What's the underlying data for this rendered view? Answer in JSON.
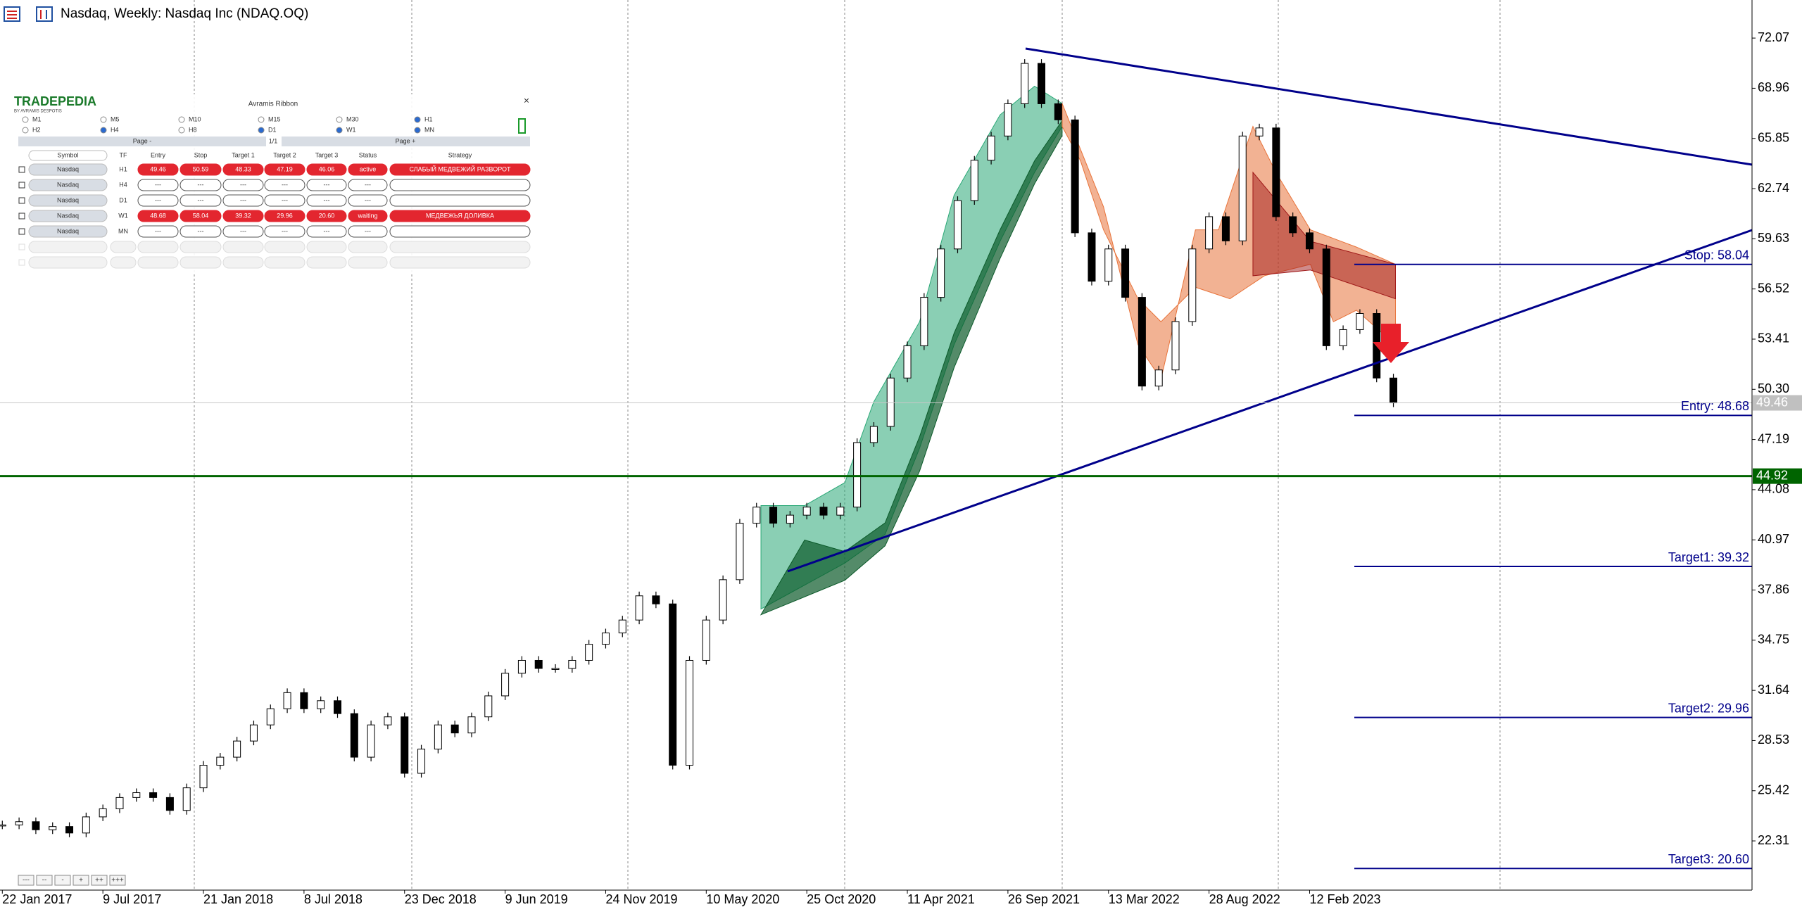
{
  "chart_data": {
    "type": "candlestick",
    "title": "Nasdaq, Weekly:  Nasdaq Inc (NDAQ.OQ)",
    "categories": [
      "22 Jan 2017",
      null,
      null,
      null,
      null,
      null,
      "9 Jul 2017",
      null,
      null,
      null,
      null,
      null,
      "21 Jan 2018",
      null,
      null,
      null,
      null,
      null,
      "8 Jul 2018",
      null,
      null,
      null,
      null,
      null,
      "23 Dec 2018",
      null,
      null,
      null,
      null,
      null,
      "9 Jun 2019",
      null,
      null,
      null,
      null,
      null,
      "24 Nov 2019",
      null,
      null,
      null,
      null,
      null,
      "10 May 2020",
      null,
      null,
      null,
      null,
      null,
      "25 Oct 2020",
      null,
      null,
      null,
      null,
      null,
      "11 Apr 2021",
      null,
      null,
      null,
      null,
      null,
      "26 Sep 2021",
      null,
      null,
      null,
      null,
      null,
      "13 Mar 2022",
      null,
      null,
      null,
      null,
      null,
      "28 Aug 2022",
      null,
      null,
      null,
      null,
      null,
      "12 Feb 2023",
      null,
      null,
      null,
      null,
      null
    ],
    "values": [
      23.3,
      23.5,
      23.0,
      23.2,
      22.8,
      23.8,
      24.3,
      25.0,
      25.3,
      25.0,
      24.2,
      25.6,
      27.0,
      27.5,
      28.5,
      29.5,
      30.5,
      31.5,
      30.5,
      31.0,
      30.2,
      27.5,
      29.5,
      30.0,
      26.5,
      28.0,
      29.5,
      29.0,
      30.0,
      31.3,
      32.7,
      33.5,
      33.0,
      33.0,
      33.5,
      34.5,
      35.2,
      36.0,
      37.5,
      37.0,
      27.0,
      33.5,
      36.0,
      38.5,
      42.0,
      43.0,
      42.0,
      42.5,
      43.0,
      42.5,
      43.0,
      47.0,
      48.0,
      51.0,
      53.0,
      56.0,
      59.0,
      62.0,
      64.5,
      66.0,
      68.0,
      70.5,
      68.0,
      67.0,
      60.0,
      57.0,
      59.0,
      56.0,
      50.5,
      51.5,
      54.5,
      59.0,
      61.0,
      59.5,
      66.0,
      66.5,
      61.0,
      60.0,
      59.0,
      53.0,
      54.0,
      55.0,
      51.0,
      49.46
    ],
    "color_up": "#ffffff",
    "color_down": "#000000",
    "ylim": [
      19.26,
      74.43
    ],
    "yticks": [
      72.07,
      68.96,
      65.85,
      62.74,
      59.63,
      56.52,
      53.41,
      {
        "value": 50.3,
        "label": "50.30"
      },
      47.19,
      44.08,
      40.97,
      37.86,
      34.75,
      31.64,
      28.53,
      25.42,
      22.31
    ],
    "grid": true,
    "levels": [
      {
        "label": "Stop: 58.04",
        "value": 58.04
      },
      {
        "label": "Entry: 48.68",
        "value": 48.68
      },
      {
        "label": "Target1: 39.32",
        "value": 39.32
      },
      {
        "label": "Target2: 29.96",
        "value": 29.96
      },
      {
        "label": "Target3: 20.60",
        "value": 20.6
      }
    ],
    "level_color": "#00008b",
    "support": {
      "value": 44.92,
      "color": "#006400"
    },
    "last": 49.46
  },
  "panel": {
    "logo": "TRADEPEDIA",
    "logo_sub": "BY AVRAMIS DESPOTIS",
    "title": "Avramis Ribbon",
    "close": "×",
    "timeframes": [
      {
        "label": "M1",
        "checked": false
      },
      {
        "label": "M5",
        "checked": false
      },
      {
        "label": "M10",
        "checked": false
      },
      {
        "label": "M15",
        "checked": false
      },
      {
        "label": "M30",
        "checked": false
      },
      {
        "label": "H1",
        "checked": true
      },
      {
        "label": "H2",
        "checked": false
      },
      {
        "label": "H4",
        "checked": true
      },
      {
        "label": "H8",
        "checked": false
      },
      {
        "label": "D1",
        "checked": true
      },
      {
        "label": "W1",
        "checked": true
      },
      {
        "label": "MN",
        "checked": true
      }
    ],
    "page_prev": "Page -",
    "page_info": "1/1",
    "page_next": "Page +",
    "columns": [
      "Symbol",
      "TF",
      "Entry",
      "Stop",
      "Target 1",
      "Target 2",
      "Target 3",
      "Status",
      "Strategy"
    ],
    "rows": [
      {
        "cells": [
          "Nasdaq",
          "H1",
          "49.46",
          "50.59",
          "48.33",
          "47.19",
          "46.06",
          "active",
          "СЛАБЫЙ МЕДВЕЖИЙ РАЗВОРОТ"
        ],
        "highlight": true
      },
      {
        "cells": [
          "Nasdaq",
          "H4",
          "---",
          "---",
          "---",
          "---",
          "---",
          "---",
          null
        ],
        "highlight": false
      },
      {
        "cells": [
          "Nasdaq",
          "D1",
          "---",
          "---",
          "---",
          "---",
          "---",
          "---",
          null
        ],
        "highlight": false
      },
      {
        "cells": [
          "Nasdaq",
          "W1",
          "48.68",
          "58.04",
          "39.32",
          "29.96",
          "20.60",
          "waiting",
          "МЕДВЕЖЬЯ ДОЛИВКА"
        ],
        "highlight": true
      },
      {
        "cells": [
          "Nasdaq",
          "MN",
          "---",
          "---",
          "---",
          "---",
          "---",
          "---",
          null
        ],
        "highlight": false
      }
    ]
  },
  "zoom_buttons": [
    "---",
    "--",
    "-",
    "+",
    "++",
    "+++"
  ]
}
